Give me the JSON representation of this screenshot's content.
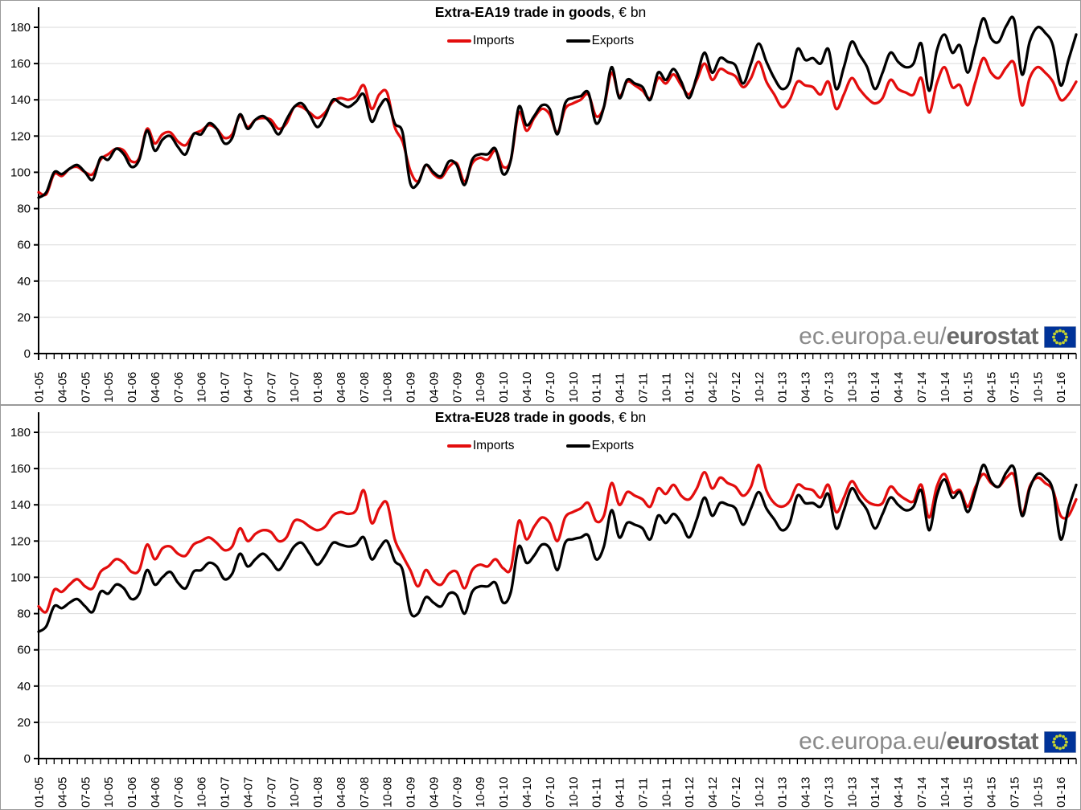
{
  "watermark": {
    "prefix": "ec.europa.eu/",
    "brand": "eurostat"
  },
  "style": {
    "import_color": "#e30d0d",
    "export_color": "#000000",
    "grid_color": "#d9d9d9",
    "axis_color": "#000000",
    "flag_blue": "#003399",
    "star_color": "#c6d42e"
  },
  "chart_data": [
    {
      "type": "line",
      "title": "Extra-EA19 trade in goods, € bn",
      "title_bold": "Extra-EA19 trade in goods",
      "title_suffix": ", € bn",
      "ylim": [
        0,
        180
      ],
      "y_tick_step": 20,
      "grid": true,
      "legend_position": "top-center",
      "months_per_label": 3,
      "x_tick_labels": [
        "01-05",
        "04-05",
        "07-05",
        "10-05",
        "01-06",
        "04-06",
        "07-06",
        "10-06",
        "01-07",
        "04-07",
        "07-07",
        "10-07",
        "01-08",
        "04-08",
        "07-08",
        "10-08",
        "01-09",
        "04-09",
        "07-09",
        "10-09",
        "01-10",
        "04-10",
        "07-10",
        "10-10",
        "01-11",
        "04-11",
        "07-11",
        "10-11",
        "01-12",
        "04-12",
        "07-12",
        "10-12",
        "01-13",
        "04-13",
        "07-13",
        "10-13",
        "01-14",
        "04-14",
        "07-14",
        "10-14",
        "01-15",
        "04-15",
        "07-15",
        "10-15",
        "01-16"
      ],
      "series": [
        {
          "name": "Imports",
          "color": "#e30d0d",
          "values": [
            89,
            88,
            99,
            98,
            102,
            103,
            100,
            99,
            107,
            110,
            113,
            112,
            106,
            108,
            124,
            116,
            121,
            122,
            117,
            115,
            121,
            123,
            126,
            124,
            119,
            121,
            131,
            125,
            129,
            130,
            129,
            124,
            127,
            136,
            136,
            133,
            130,
            133,
            139,
            141,
            140,
            142,
            148,
            135,
            143,
            144,
            125,
            117,
            101,
            95,
            104,
            99,
            97,
            103,
            105,
            95,
            105,
            108,
            107,
            112,
            103,
            107,
            133,
            123,
            130,
            135,
            132,
            122,
            135,
            138,
            140,
            143,
            131,
            136,
            155,
            142,
            150,
            148,
            145,
            141,
            152,
            149,
            154,
            148,
            143,
            151,
            160,
            151,
            157,
            155,
            153,
            147,
            152,
            161,
            150,
            143,
            136,
            140,
            150,
            148,
            147,
            143,
            150,
            135,
            143,
            152,
            146,
            141,
            138,
            141,
            151,
            146,
            144,
            143,
            152,
            133,
            149,
            158,
            147,
            148,
            137,
            150,
            163,
            155,
            152,
            158,
            160,
            137,
            152,
            158,
            155,
            150,
            140,
            143,
            150
          ]
        },
        {
          "name": "Exports",
          "color": "#000000",
          "values": [
            86,
            89,
            100,
            99,
            102,
            104,
            100,
            96,
            108,
            107,
            113,
            110,
            103,
            107,
            123,
            112,
            118,
            120,
            114,
            110,
            121,
            121,
            127,
            124,
            116,
            119,
            132,
            124,
            129,
            131,
            127,
            121,
            129,
            136,
            138,
            132,
            125,
            131,
            140,
            138,
            136,
            139,
            143,
            128,
            136,
            140,
            127,
            122,
            94,
            94,
            104,
            100,
            98,
            106,
            104,
            93,
            107,
            110,
            110,
            113,
            99,
            107,
            136,
            126,
            131,
            137,
            135,
            121,
            138,
            141,
            142,
            144,
            127,
            136,
            158,
            141,
            151,
            149,
            147,
            140,
            155,
            151,
            157,
            150,
            141,
            153,
            166,
            155,
            163,
            161,
            159,
            149,
            160,
            171,
            161,
            152,
            146,
            150,
            168,
            162,
            163,
            160,
            168,
            146,
            158,
            172,
            165,
            158,
            146,
            155,
            166,
            161,
            158,
            160,
            171,
            145,
            167,
            176,
            166,
            170,
            155,
            170,
            185,
            174,
            172,
            181,
            184,
            154,
            172,
            180,
            177,
            170,
            148,
            162,
            176
          ]
        }
      ]
    },
    {
      "type": "line",
      "title": "Extra-EU28 trade in goods, € bn",
      "title_bold": "Extra-EU28 trade in goods",
      "title_suffix": ", € bn",
      "ylim": [
        0,
        180
      ],
      "y_tick_step": 20,
      "grid": true,
      "legend_position": "top-center",
      "months_per_label": 3,
      "x_tick_labels": [
        "01-05",
        "04-05",
        "07-05",
        "10-05",
        "01-06",
        "04-06",
        "07-06",
        "10-06",
        "01-07",
        "04-07",
        "07-07",
        "10-07",
        "01-08",
        "04-08",
        "07-08",
        "10-08",
        "01-09",
        "04-09",
        "07-09",
        "10-09",
        "01-10",
        "04-10",
        "07-10",
        "10-10",
        "01-11",
        "04-11",
        "07-11",
        "10-11",
        "01-12",
        "04-12",
        "07-12",
        "10-12",
        "01-13",
        "04-13",
        "07-13",
        "10-13",
        "01-14",
        "04-14",
        "07-14",
        "10-14",
        "01-15",
        "04-15",
        "07-15",
        "10-15",
        "01-16"
      ],
      "series": [
        {
          "name": "Imports",
          "color": "#e30d0d",
          "values": [
            84,
            81,
            93,
            92,
            96,
            99,
            95,
            94,
            103,
            106,
            110,
            108,
            103,
            104,
            118,
            110,
            116,
            117,
            113,
            112,
            118,
            120,
            122,
            119,
            115,
            117,
            127,
            120,
            124,
            126,
            125,
            120,
            122,
            131,
            131,
            128,
            126,
            128,
            134,
            136,
            135,
            137,
            148,
            130,
            138,
            141,
            121,
            112,
            104,
            95,
            104,
            98,
            96,
            102,
            103,
            94,
            104,
            107,
            106,
            110,
            105,
            105,
            131,
            121,
            128,
            133,
            130,
            120,
            133,
            136,
            138,
            141,
            131,
            134,
            152,
            140,
            147,
            145,
            143,
            139,
            149,
            146,
            151,
            145,
            143,
            149,
            158,
            149,
            155,
            152,
            150,
            145,
            150,
            162,
            148,
            141,
            139,
            142,
            151,
            149,
            148,
            144,
            151,
            136,
            144,
            153,
            147,
            142,
            140,
            141,
            150,
            146,
            143,
            142,
            151,
            133,
            150,
            157,
            147,
            148,
            139,
            150,
            157,
            152,
            150,
            155,
            156,
            135,
            150,
            155,
            152,
            148,
            134,
            134,
            143
          ]
        },
        {
          "name": "Exports",
          "color": "#000000",
          "values": [
            70,
            73,
            84,
            83,
            86,
            88,
            84,
            81,
            92,
            91,
            96,
            94,
            88,
            91,
            104,
            96,
            100,
            103,
            97,
            94,
            103,
            104,
            108,
            106,
            99,
            102,
            113,
            106,
            110,
            113,
            109,
            104,
            110,
            117,
            119,
            113,
            107,
            112,
            119,
            118,
            117,
            118,
            122,
            110,
            116,
            120,
            109,
            104,
            81,
            80,
            89,
            86,
            84,
            91,
            90,
            80,
            92,
            95,
            95,
            97,
            86,
            92,
            117,
            108,
            112,
            118,
            116,
            104,
            119,
            121,
            122,
            123,
            110,
            117,
            137,
            122,
            130,
            129,
            127,
            121,
            134,
            130,
            135,
            130,
            122,
            132,
            144,
            134,
            141,
            140,
            138,
            129,
            138,
            147,
            138,
            132,
            126,
            130,
            145,
            141,
            141,
            139,
            146,
            127,
            137,
            149,
            143,
            137,
            127,
            135,
            144,
            140,
            137,
            139,
            148,
            126,
            145,
            154,
            144,
            147,
            136,
            148,
            162,
            153,
            150,
            158,
            160,
            134,
            149,
            157,
            155,
            148,
            121,
            138,
            151
          ]
        }
      ]
    }
  ]
}
